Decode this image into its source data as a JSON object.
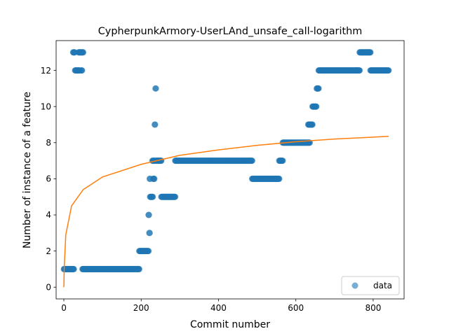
{
  "chart_data": {
    "type": "scatter",
    "title": "CypherpunkArmory-UserLAnd_unsafe_call-logarithm",
    "xlabel": "Commit number",
    "ylabel": "Number of instance of a feature",
    "xlim": [
      -20,
      880
    ],
    "ylim": [
      -0.65,
      13.65
    ],
    "xticks": [
      0,
      200,
      400,
      600,
      800
    ],
    "yticks": [
      0,
      2,
      4,
      6,
      8,
      10,
      12
    ],
    "grid": false,
    "legend": {
      "position": "lower-right",
      "entries": [
        "data"
      ]
    },
    "colors": {
      "data": "#1f77b4",
      "fit": "#ff7f0e"
    },
    "series": [
      {
        "name": "data",
        "kind": "scatter",
        "segments": [
          {
            "x_start": 0,
            "x_end": 26,
            "y": 1
          },
          {
            "x_start": 24,
            "x_end": 28,
            "y": 13
          },
          {
            "x_start": 29,
            "x_end": 41,
            "y": 12
          },
          {
            "x_start": 38,
            "x_end": 50,
            "y": 13
          },
          {
            "x_start": 45,
            "x_end": 47,
            "y": 12
          },
          {
            "x_start": 48,
            "x_end": 195,
            "y": 1
          },
          {
            "x_start": 195,
            "x_end": 219,
            "y": 2
          },
          {
            "x_start": 219,
            "x_end": 220,
            "y": 4
          },
          {
            "x_start": 221,
            "x_end": 222,
            "y": 3
          },
          {
            "x_start": 222,
            "x_end": 223,
            "y": 6
          },
          {
            "x_start": 223,
            "x_end": 230,
            "y": 5
          },
          {
            "x_start": 229,
            "x_end": 235,
            "y": 7
          },
          {
            "x_start": 231,
            "x_end": 234,
            "y": 6
          },
          {
            "x_start": 235,
            "x_end": 236,
            "y": 9
          },
          {
            "x_start": 237,
            "x_end": 238,
            "y": 11
          },
          {
            "x_start": 238,
            "x_end": 252,
            "y": 7
          },
          {
            "x_start": 252,
            "x_end": 288,
            "y": 5
          },
          {
            "x_start": 288,
            "x_end": 487,
            "y": 7
          },
          {
            "x_start": 487,
            "x_end": 557,
            "y": 6
          },
          {
            "x_start": 557,
            "x_end": 566,
            "y": 7
          },
          {
            "x_start": 566,
            "x_end": 636,
            "y": 8
          },
          {
            "x_start": 632,
            "x_end": 643,
            "y": 9
          },
          {
            "x_start": 643,
            "x_end": 653,
            "y": 10
          },
          {
            "x_start": 654,
            "x_end": 659,
            "y": 11
          },
          {
            "x_start": 659,
            "x_end": 765,
            "y": 12
          },
          {
            "x_start": 765,
            "x_end": 793,
            "y": 13
          },
          {
            "x_start": 793,
            "x_end": 840,
            "y": 12
          }
        ]
      },
      {
        "name": "fit",
        "kind": "line",
        "model": "logarithmic",
        "x_range": [
          0,
          840
        ],
        "points": [
          [
            0,
            0.0
          ],
          [
            1,
            1.1
          ],
          [
            5,
            2.9
          ],
          [
            20,
            4.5
          ],
          [
            50,
            5.4
          ],
          [
            100,
            6.1
          ],
          [
            200,
            6.8
          ],
          [
            300,
            7.3
          ],
          [
            400,
            7.6
          ],
          [
            500,
            7.85
          ],
          [
            600,
            8.05
          ],
          [
            700,
            8.2
          ],
          [
            840,
            8.35
          ]
        ]
      }
    ]
  }
}
